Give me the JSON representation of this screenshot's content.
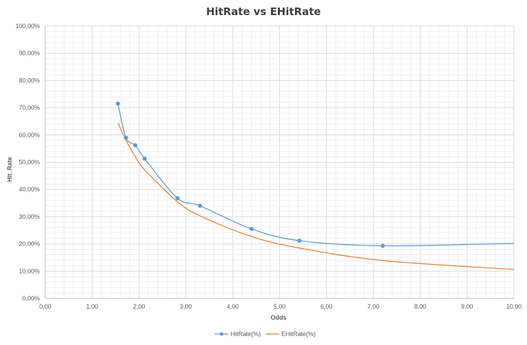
{
  "chart_data": {
    "type": "line",
    "title": "HitRate vs EHitRate",
    "xlabel": "Odds",
    "ylabel": "Hit_Rate",
    "xlim": [
      0,
      10
    ],
    "ylim": [
      0,
      100
    ],
    "x_ticks": [
      "0,00",
      "1,00",
      "2,00",
      "3,00",
      "4,00",
      "5,00",
      "6,00",
      "7,00",
      "8,00",
      "9,00",
      "10,00"
    ],
    "y_ticks": [
      "0,00%",
      "10,00%",
      "20,00%",
      "30,00%",
      "40,00%",
      "50,00%",
      "60,00%",
      "70,00%",
      "80,00%",
      "90,00%",
      "100,00%"
    ],
    "grid": true,
    "legend_position": "bottom",
    "series": [
      {
        "name": "HitRate(%)",
        "color": "#5b9bd5",
        "markers": true,
        "x": [
          1.55,
          1.72,
          1.92,
          2.12,
          2.82,
          3.3,
          4.4,
          5.42,
          7.2,
          10.0
        ],
        "y": [
          71.5,
          59.0,
          56.2,
          51.3,
          36.8,
          34.0,
          25.5,
          21.2,
          19.3,
          20.2
        ],
        "marker_x": [
          1.55,
          1.72,
          1.92,
          2.12,
          2.82,
          3.3,
          4.4,
          5.42,
          7.2
        ],
        "marker_y": [
          71.5,
          59.0,
          56.2,
          51.3,
          36.8,
          34.0,
          25.5,
          21.2,
          19.3
        ]
      },
      {
        "name": "EHitRate(%)",
        "color": "#ed7d31",
        "markers": false,
        "x": [
          1.55,
          1.72,
          1.92,
          2.12,
          2.82,
          3.3,
          4.4,
          5.42,
          7.2,
          10.0
        ],
        "y": [
          64.5,
          58.1,
          52.1,
          47.2,
          35.5,
          30.3,
          22.7,
          18.5,
          13.9,
          10.6
        ]
      }
    ]
  }
}
